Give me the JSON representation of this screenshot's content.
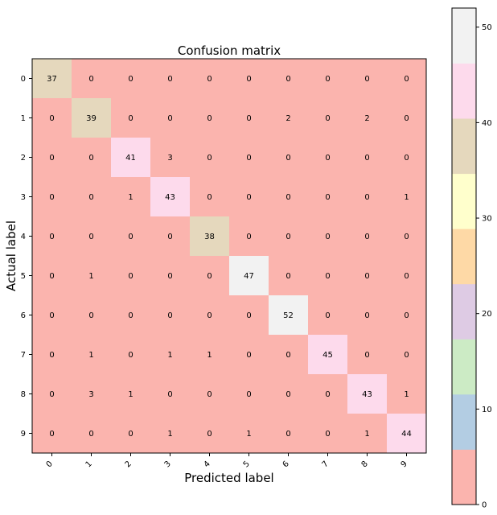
{
  "chart_data": {
    "type": "heatmap",
    "title": "Confusion matrix",
    "xlabel": "Predicted label",
    "ylabel": "Actual label",
    "x_categories": [
      "0",
      "1",
      "2",
      "3",
      "4",
      "5",
      "6",
      "7",
      "8",
      "9"
    ],
    "y_categories": [
      "0",
      "1",
      "2",
      "3",
      "4",
      "5",
      "6",
      "7",
      "8",
      "9"
    ],
    "matrix": [
      [
        37,
        0,
        0,
        0,
        0,
        0,
        0,
        0,
        0,
        0
      ],
      [
        0,
        39,
        0,
        0,
        0,
        0,
        2,
        0,
        2,
        0
      ],
      [
        0,
        0,
        41,
        3,
        0,
        0,
        0,
        0,
        0,
        0
      ],
      [
        0,
        0,
        1,
        43,
        0,
        0,
        0,
        0,
        0,
        1
      ],
      [
        0,
        0,
        0,
        0,
        38,
        0,
        0,
        0,
        0,
        0
      ],
      [
        0,
        1,
        0,
        0,
        0,
        47,
        0,
        0,
        0,
        0
      ],
      [
        0,
        0,
        0,
        0,
        0,
        0,
        52,
        0,
        0,
        0
      ],
      [
        0,
        1,
        0,
        1,
        1,
        0,
        0,
        45,
        0,
        0
      ],
      [
        0,
        3,
        1,
        0,
        0,
        0,
        0,
        0,
        43,
        1
      ],
      [
        0,
        0,
        0,
        1,
        0,
        1,
        0,
        0,
        1,
        44
      ]
    ],
    "colorbar": {
      "colormap": "Pastel1",
      "range": [
        0,
        52
      ],
      "ticks": [
        0,
        10,
        20,
        30,
        40,
        50
      ],
      "colors": [
        "#fbb4ae",
        "#b3cde3",
        "#ccebc5",
        "#decbe4",
        "#fed9a6",
        "#ffffcc",
        "#e5d8bd",
        "#fddaec",
        "#f2f2f2"
      ]
    },
    "grid": false,
    "x_tick_rotation_deg": 45
  }
}
